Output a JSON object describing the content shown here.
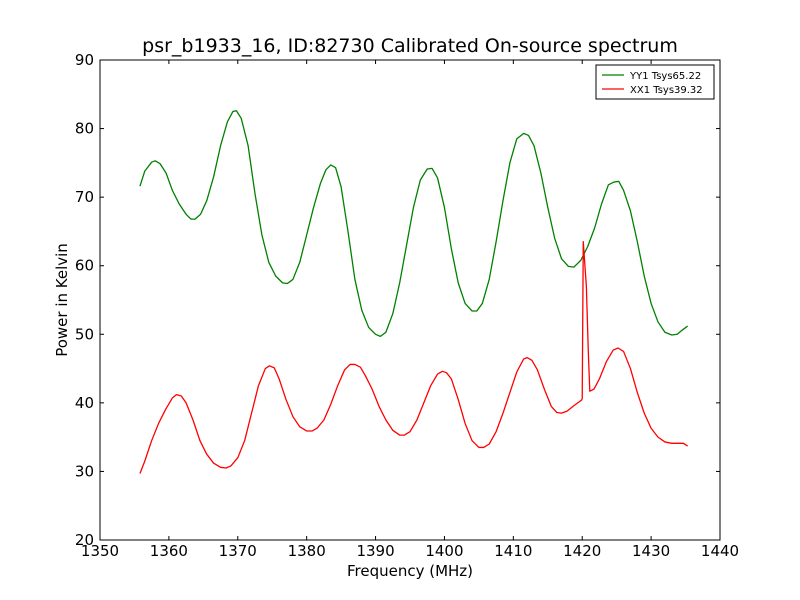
{
  "chart_data": {
    "type": "line",
    "title": "psr_b1933_16, ID:82730 Calibrated On-source spectrum",
    "xlabel": "Frequency (MHz)",
    "ylabel": "Power in Kelvin",
    "xlim": [
      1350,
      1440
    ],
    "ylim": [
      20,
      90
    ],
    "xticks": [
      1350,
      1360,
      1370,
      1380,
      1390,
      1400,
      1410,
      1420,
      1430,
      1440
    ],
    "yticks": [
      20,
      30,
      40,
      50,
      60,
      70,
      80,
      90
    ],
    "grid": false,
    "legend_position": "top-right",
    "series": [
      {
        "name": "YY1 Tsys65.22",
        "color": "#008000",
        "points": [
          [
            1355.8,
            71.6
          ],
          [
            1356.5,
            73.8
          ],
          [
            1357.5,
            75.1
          ],
          [
            1358.0,
            75.3
          ],
          [
            1358.7,
            74.9
          ],
          [
            1359.6,
            73.5
          ],
          [
            1360.5,
            71.0
          ],
          [
            1361.5,
            69.0
          ],
          [
            1362.5,
            67.5
          ],
          [
            1363.2,
            66.8
          ],
          [
            1363.8,
            66.8
          ],
          [
            1364.6,
            67.5
          ],
          [
            1365.5,
            69.5
          ],
          [
            1366.5,
            73.0
          ],
          [
            1367.5,
            77.5
          ],
          [
            1368.5,
            81.0
          ],
          [
            1369.3,
            82.5
          ],
          [
            1369.8,
            82.6
          ],
          [
            1370.5,
            81.5
          ],
          [
            1371.5,
            77.5
          ],
          [
            1372.5,
            70.5
          ],
          [
            1373.5,
            64.5
          ],
          [
            1374.5,
            60.5
          ],
          [
            1375.5,
            58.5
          ],
          [
            1376.5,
            57.5
          ],
          [
            1377.2,
            57.4
          ],
          [
            1378.0,
            58.0
          ],
          [
            1379.0,
            60.5
          ],
          [
            1380.0,
            64.5
          ],
          [
            1381.0,
            68.5
          ],
          [
            1382.0,
            72.0
          ],
          [
            1382.8,
            74.0
          ],
          [
            1383.5,
            74.7
          ],
          [
            1384.2,
            74.3
          ],
          [
            1385.0,
            71.5
          ],
          [
            1386.0,
            65.0
          ],
          [
            1387.0,
            58.0
          ],
          [
            1388.0,
            53.5
          ],
          [
            1389.0,
            51.0
          ],
          [
            1390.0,
            50.0
          ],
          [
            1390.7,
            49.7
          ],
          [
            1391.5,
            50.3
          ],
          [
            1392.5,
            53.0
          ],
          [
            1393.5,
            57.5
          ],
          [
            1394.5,
            63.0
          ],
          [
            1395.5,
            68.5
          ],
          [
            1396.5,
            72.5
          ],
          [
            1397.5,
            74.1
          ],
          [
            1398.2,
            74.2
          ],
          [
            1399.0,
            72.8
          ],
          [
            1400.0,
            68.5
          ],
          [
            1401.0,
            62.5
          ],
          [
            1402.0,
            57.5
          ],
          [
            1403.0,
            54.5
          ],
          [
            1404.0,
            53.4
          ],
          [
            1404.7,
            53.4
          ],
          [
            1405.5,
            54.5
          ],
          [
            1406.5,
            58.0
          ],
          [
            1407.5,
            63.5
          ],
          [
            1408.5,
            69.5
          ],
          [
            1409.5,
            75.0
          ],
          [
            1410.5,
            78.5
          ],
          [
            1411.5,
            79.3
          ],
          [
            1412.2,
            79.0
          ],
          [
            1413.0,
            77.5
          ],
          [
            1414.0,
            73.5
          ],
          [
            1415.0,
            68.5
          ],
          [
            1416.0,
            64.0
          ],
          [
            1417.0,
            61.0
          ],
          [
            1418.0,
            59.9
          ],
          [
            1418.8,
            59.8
          ],
          [
            1419.8,
            60.8
          ],
          [
            1420.8,
            62.8
          ],
          [
            1421.8,
            65.5
          ],
          [
            1422.8,
            69.0
          ],
          [
            1423.8,
            71.8
          ],
          [
            1424.6,
            72.2
          ],
          [
            1425.3,
            72.3
          ],
          [
            1426.0,
            71.0
          ],
          [
            1427.0,
            68.0
          ],
          [
            1428.0,
            63.5
          ],
          [
            1429.0,
            58.5
          ],
          [
            1430.0,
            54.5
          ],
          [
            1431.0,
            51.8
          ],
          [
            1432.0,
            50.3
          ],
          [
            1433.0,
            49.9
          ],
          [
            1433.8,
            50.0
          ],
          [
            1434.5,
            50.6
          ],
          [
            1435.3,
            51.2
          ]
        ]
      },
      {
        "name": "XX1 Tsys39.32",
        "color": "#ff0000",
        "points": [
          [
            1355.8,
            29.7
          ],
          [
            1356.5,
            31.5
          ],
          [
            1357.5,
            34.5
          ],
          [
            1358.5,
            37.0
          ],
          [
            1359.5,
            39.0
          ],
          [
            1360.5,
            40.7
          ],
          [
            1361.1,
            41.2
          ],
          [
            1361.8,
            41.0
          ],
          [
            1362.5,
            40.0
          ],
          [
            1363.5,
            37.5
          ],
          [
            1364.5,
            34.5
          ],
          [
            1365.5,
            32.5
          ],
          [
            1366.5,
            31.2
          ],
          [
            1367.5,
            30.6
          ],
          [
            1368.3,
            30.5
          ],
          [
            1369.0,
            30.8
          ],
          [
            1370.0,
            32.0
          ],
          [
            1371.0,
            34.5
          ],
          [
            1372.0,
            38.5
          ],
          [
            1373.0,
            42.5
          ],
          [
            1374.0,
            45.0
          ],
          [
            1374.6,
            45.4
          ],
          [
            1375.3,
            45.1
          ],
          [
            1376.0,
            43.5
          ],
          [
            1377.0,
            40.5
          ],
          [
            1378.0,
            38.0
          ],
          [
            1379.0,
            36.5
          ],
          [
            1380.0,
            35.9
          ],
          [
            1380.8,
            35.9
          ],
          [
            1381.5,
            36.3
          ],
          [
            1382.5,
            37.5
          ],
          [
            1383.5,
            39.8
          ],
          [
            1384.5,
            42.5
          ],
          [
            1385.5,
            44.8
          ],
          [
            1386.3,
            45.6
          ],
          [
            1387.0,
            45.6
          ],
          [
            1387.8,
            45.2
          ],
          [
            1388.5,
            44.0
          ],
          [
            1389.5,
            42.0
          ],
          [
            1390.5,
            39.5
          ],
          [
            1391.5,
            37.5
          ],
          [
            1392.5,
            36.0
          ],
          [
            1393.5,
            35.3
          ],
          [
            1394.2,
            35.3
          ],
          [
            1395.0,
            35.8
          ],
          [
            1396.0,
            37.5
          ],
          [
            1397.0,
            40.0
          ],
          [
            1398.0,
            42.5
          ],
          [
            1399.0,
            44.2
          ],
          [
            1399.7,
            44.6
          ],
          [
            1400.3,
            44.4
          ],
          [
            1401.0,
            43.5
          ],
          [
            1402.0,
            40.5
          ],
          [
            1403.0,
            37.0
          ],
          [
            1404.0,
            34.5
          ],
          [
            1405.0,
            33.5
          ],
          [
            1405.7,
            33.5
          ],
          [
            1406.5,
            34.0
          ],
          [
            1407.5,
            35.8
          ],
          [
            1408.5,
            38.5
          ],
          [
            1409.5,
            41.5
          ],
          [
            1410.5,
            44.5
          ],
          [
            1411.5,
            46.4
          ],
          [
            1412.0,
            46.6
          ],
          [
            1412.7,
            46.2
          ],
          [
            1413.5,
            44.8
          ],
          [
            1414.5,
            42.0
          ],
          [
            1415.5,
            39.5
          ],
          [
            1416.3,
            38.6
          ],
          [
            1417.0,
            38.5
          ],
          [
            1417.8,
            38.8
          ],
          [
            1418.8,
            39.6
          ],
          [
            1419.9,
            40.4
          ],
          [
            1420.0,
            40.6
          ],
          [
            1420.15,
            63.5
          ],
          [
            1420.6,
            57.0
          ],
          [
            1420.9,
            47.0
          ],
          [
            1421.1,
            41.7
          ],
          [
            1421.7,
            42.0
          ],
          [
            1422.5,
            43.5
          ],
          [
            1423.5,
            46.0
          ],
          [
            1424.5,
            47.7
          ],
          [
            1425.2,
            48.0
          ],
          [
            1426.0,
            47.5
          ],
          [
            1427.0,
            45.0
          ],
          [
            1428.0,
            41.5
          ],
          [
            1429.0,
            38.5
          ],
          [
            1430.0,
            36.3
          ],
          [
            1431.0,
            35.0
          ],
          [
            1432.0,
            34.3
          ],
          [
            1433.0,
            34.1
          ],
          [
            1434.0,
            34.1
          ],
          [
            1434.7,
            34.1
          ],
          [
            1435.3,
            33.7
          ]
        ]
      }
    ]
  }
}
